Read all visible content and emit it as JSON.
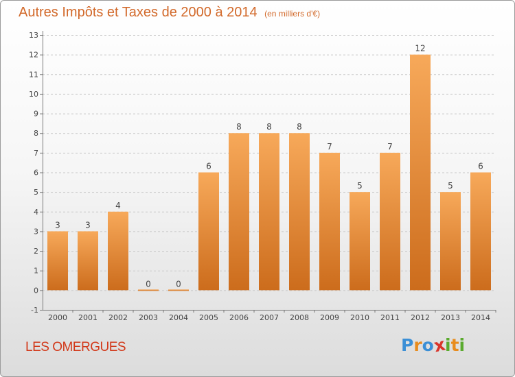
{
  "title": "Autres Impôts et Taxes de 2000 à 2014",
  "unit_note": "(en milliers d'€)",
  "commune": "LES OMERGUES",
  "brand": {
    "letters": [
      "P",
      "r",
      "o",
      "x",
      "i",
      "t",
      "i"
    ],
    "colors": [
      "#3b8fd6",
      "#e88c1e",
      "#3b8fd6",
      "#d9342a",
      "#5aaa2e",
      "#e88c1e",
      "#5aaa2e"
    ]
  },
  "colors": {
    "bar_light": "#f7a95a",
    "bar_dark": "#cc6c1c",
    "title": "#d2692a",
    "commune": "#d2391a"
  },
  "chart_data": {
    "type": "bar",
    "categories": [
      "2000",
      "2001",
      "2002",
      "2003",
      "2004",
      "2005",
      "2006",
      "2007",
      "2008",
      "2009",
      "2010",
      "2011",
      "2012",
      "2013",
      "2014"
    ],
    "values": [
      3,
      3,
      4,
      0,
      0,
      6,
      8,
      8,
      8,
      7,
      5,
      7,
      12,
      5,
      6
    ],
    "labels": [
      "3",
      "3",
      "4",
      "0",
      "0",
      "6",
      "8",
      "8",
      "8",
      "7",
      "5",
      "7",
      "12",
      "5",
      "6"
    ],
    "yticks": [
      -1,
      0,
      1,
      2,
      3,
      4,
      5,
      6,
      7,
      8,
      9,
      10,
      11,
      12,
      13
    ],
    "ylim": [
      -1,
      13
    ],
    "grid": true,
    "xlabel": "",
    "ylabel": ""
  }
}
